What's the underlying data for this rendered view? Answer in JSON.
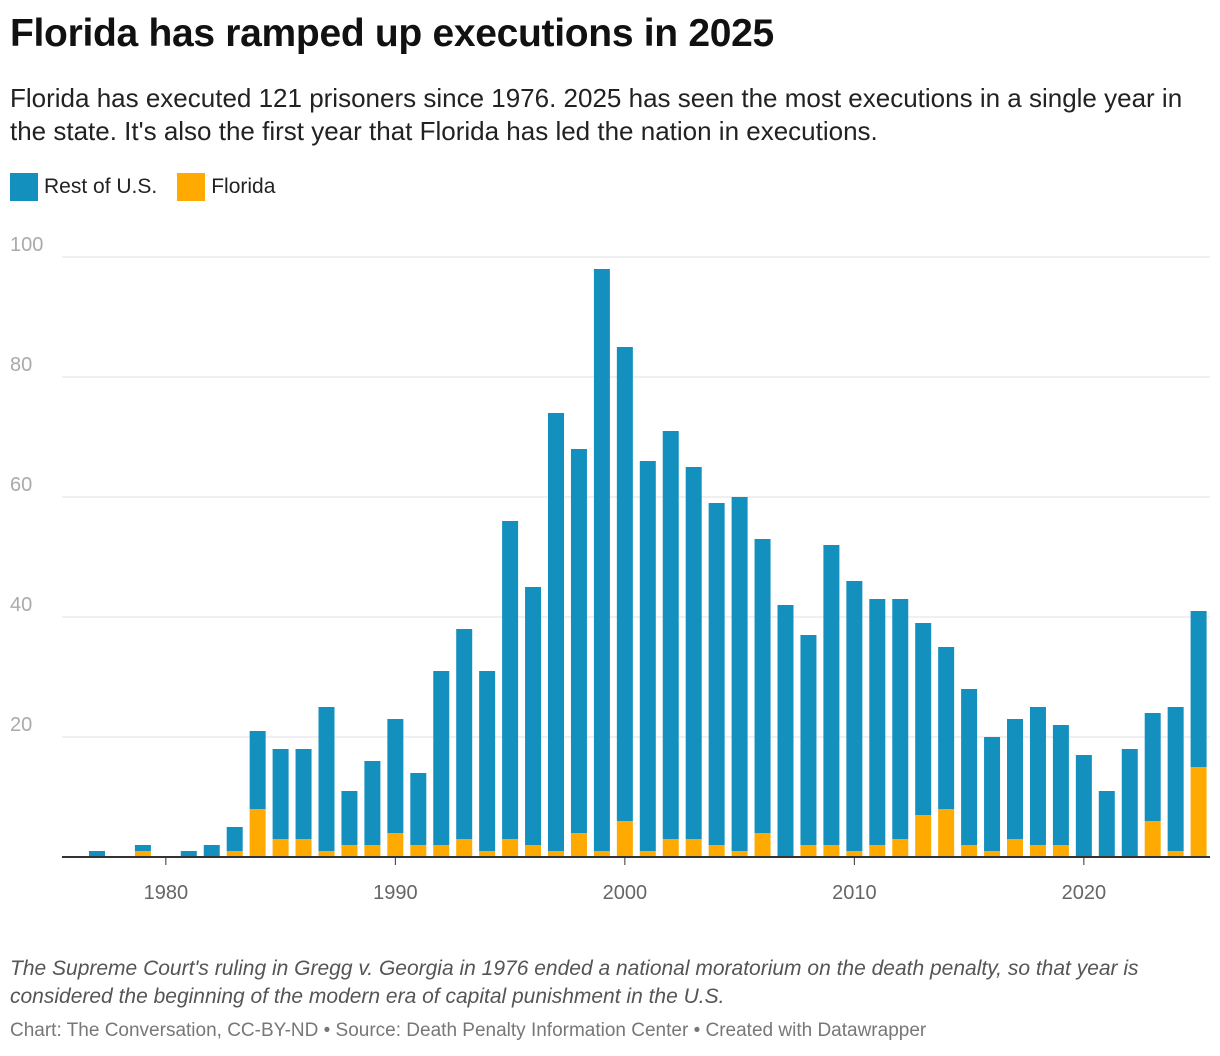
{
  "title": "Florida has ramped up executions in 2025",
  "subtitle": "Florida has executed 121 prisoners since 1976. 2025 has seen the most executions in a single year in the state. It's also the first year that Florida has led the nation in executions.",
  "note": "The Supreme Court's ruling in Gregg v. Georgia in 1976 ended a national moratorium on the death penalty, so that year is considered the beginning of the modern era of capital punishment in the U.S.",
  "credit": "Chart: The Conversation, CC-BY-ND • Source: Death Penalty Information Center • Created with Datawrapper",
  "chart_data": {
    "type": "bar",
    "stacked": true,
    "legend_position": "top-left",
    "grid": true,
    "ylim": [
      0,
      100
    ],
    "y_ticks": [
      20,
      40,
      60,
      80,
      100
    ],
    "x_ticks": [
      1980,
      1990,
      2000,
      2010,
      2020
    ],
    "xlabel": "",
    "ylabel": "",
    "x": [
      1977,
      1978,
      1979,
      1980,
      1981,
      1982,
      1983,
      1984,
      1985,
      1986,
      1987,
      1988,
      1989,
      1990,
      1991,
      1992,
      1993,
      1994,
      1995,
      1996,
      1997,
      1998,
      1999,
      2000,
      2001,
      2002,
      2003,
      2004,
      2005,
      2006,
      2007,
      2008,
      2009,
      2010,
      2011,
      2012,
      2013,
      2014,
      2015,
      2016,
      2017,
      2018,
      2019,
      2020,
      2021,
      2022,
      2023,
      2024,
      2025
    ],
    "series": [
      {
        "name": "Florida",
        "color": "#ffaa00",
        "values": [
          0,
          0,
          1,
          0,
          0,
          0,
          1,
          8,
          3,
          3,
          1,
          2,
          2,
          4,
          2,
          2,
          3,
          1,
          3,
          2,
          1,
          4,
          1,
          6,
          1,
          3,
          3,
          2,
          1,
          4,
          0,
          2,
          2,
          1,
          2,
          3,
          7,
          8,
          2,
          1,
          3,
          2,
          2,
          0,
          0,
          0,
          6,
          1,
          15
        ]
      },
      {
        "name": "Rest of U.S.",
        "color": "#1490bf",
        "values": [
          1,
          0,
          1,
          0,
          1,
          2,
          4,
          13,
          15,
          15,
          24,
          9,
          14,
          19,
          12,
          29,
          35,
          30,
          53,
          43,
          73,
          64,
          97,
          79,
          65,
          68,
          62,
          57,
          59,
          49,
          42,
          35,
          50,
          45,
          41,
          40,
          32,
          27,
          26,
          19,
          20,
          23,
          20,
          17,
          11,
          18,
          18,
          24,
          26
        ]
      }
    ]
  }
}
